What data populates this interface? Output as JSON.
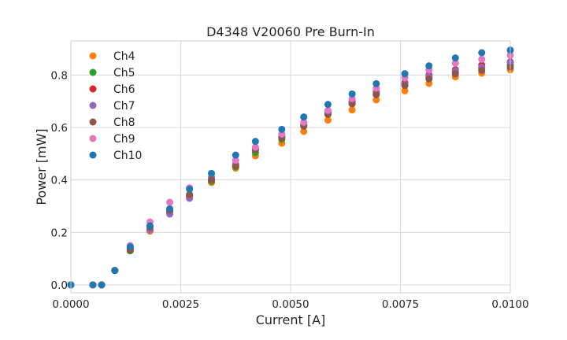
{
  "chart_data": {
    "type": "scatter",
    "title": "D4348 V20060 Pre Burn-In",
    "xlabel": "Current [A]",
    "ylabel": "Power [mW]",
    "xlim": [
      0,
      0.01
    ],
    "ylim": [
      -0.03,
      0.93
    ],
    "x_ticks": [
      "0.0000",
      "0.0025",
      "0.0050",
      "0.0075",
      "0.0100"
    ],
    "y_ticks": [
      "0.0",
      "0.2",
      "0.4",
      "0.6",
      "0.8"
    ],
    "grid": true,
    "legend_position": "top-left",
    "x": [
      0.0,
      0.0005,
      0.0007,
      0.001,
      0.00135,
      0.0018,
      0.00225,
      0.0027,
      0.0032,
      0.00375,
      0.0042,
      0.0048,
      0.0053,
      0.00585,
      0.0064,
      0.00695,
      0.0076,
      0.00815,
      0.00875,
      0.00935,
      0.01
    ],
    "series": [
      {
        "name": "Ch4",
        "color": "#ff7f0e",
        "values": [
          0.0,
          0.0,
          0.0,
          0.055,
          0.13,
          0.205,
          0.275,
          0.335,
          0.39,
          0.445,
          0.492,
          0.54,
          0.585,
          0.628,
          0.667,
          0.705,
          0.74,
          0.768,
          0.793,
          0.807,
          0.82
        ]
      },
      {
        "name": "Ch5",
        "color": "#2ca02c",
        "values": [
          0.0,
          0.0,
          0.0,
          0.055,
          0.13,
          0.21,
          0.28,
          0.34,
          0.395,
          0.45,
          0.505,
          0.555,
          0.605,
          0.65,
          0.69,
          0.727,
          0.762,
          0.79,
          0.81,
          0.825,
          0.838
        ]
      },
      {
        "name": "Ch6",
        "color": "#d62728",
        "values": [
          0.0,
          0.0,
          0.0,
          0.055,
          0.135,
          0.21,
          0.28,
          0.34,
          0.4,
          0.455,
          0.52,
          0.565,
          0.612,
          0.658,
          0.7,
          0.735,
          0.77,
          0.8,
          0.82,
          0.838,
          0.85
        ]
      },
      {
        "name": "Ch7",
        "color": "#9467bd",
        "values": [
          0.0,
          0.0,
          0.0,
          0.055,
          0.14,
          0.21,
          0.27,
          0.33,
          0.41,
          0.46,
          0.515,
          0.565,
          0.61,
          0.655,
          0.695,
          0.73,
          0.765,
          0.795,
          0.815,
          0.83,
          0.848
        ]
      },
      {
        "name": "Ch8",
        "color": "#8c564b",
        "values": [
          0.0,
          0.0,
          0.0,
          0.055,
          0.14,
          0.22,
          0.285,
          0.345,
          0.4,
          0.455,
          0.515,
          0.56,
          0.605,
          0.65,
          0.69,
          0.725,
          0.76,
          0.785,
          0.805,
          0.818,
          0.83
        ]
      },
      {
        "name": "Ch9",
        "color": "#e377c2",
        "values": [
          0.0,
          0.0,
          0.0,
          0.055,
          0.15,
          0.24,
          0.315,
          0.37,
          0.425,
          0.475,
          0.525,
          0.575,
          0.62,
          0.665,
          0.71,
          0.75,
          0.79,
          0.82,
          0.845,
          0.86,
          0.875
        ]
      },
      {
        "name": "Ch10",
        "color": "#1f77b4",
        "values": [
          0.0,
          0.0,
          0.0,
          0.055,
          0.145,
          0.225,
          0.29,
          0.365,
          0.425,
          0.495,
          0.547,
          0.593,
          0.64,
          0.688,
          0.728,
          0.767,
          0.805,
          0.835,
          0.865,
          0.885,
          0.895
        ]
      }
    ]
  }
}
